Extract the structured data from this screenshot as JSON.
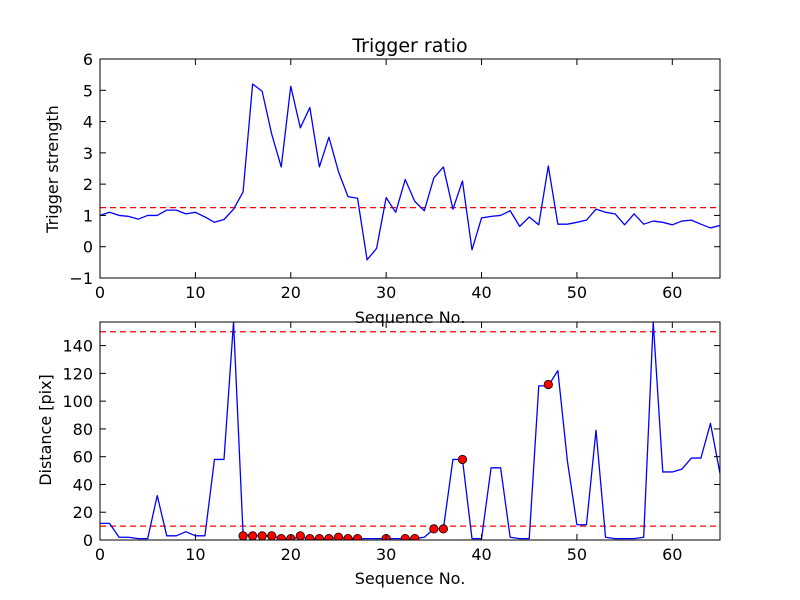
{
  "chart_data": [
    {
      "type": "line",
      "title": "Trigger ratio",
      "xlabel": "Sequence No.",
      "ylabel": "Trigger strength",
      "xlim": [
        0,
        65
      ],
      "ylim": [
        -1,
        6
      ],
      "xticks": [
        0,
        10,
        20,
        30,
        40,
        50,
        60
      ],
      "yticks": [
        -1,
        0,
        1,
        2,
        3,
        4,
        5,
        6
      ],
      "grid": false,
      "series": [
        {
          "color": "#0000ff",
          "x": [
            0,
            1,
            2,
            3,
            4,
            5,
            6,
            7,
            8,
            9,
            10,
            11,
            12,
            13,
            14,
            15,
            16,
            17,
            18,
            19,
            20,
            21,
            22,
            23,
            24,
            25,
            26,
            27,
            28,
            29,
            30,
            31,
            32,
            33,
            34,
            35,
            36,
            37,
            38,
            39,
            40,
            41,
            42,
            43,
            44,
            45,
            46,
            47,
            48,
            49,
            50,
            51,
            52,
            53,
            54,
            55,
            56,
            57,
            58,
            59,
            60,
            61,
            62,
            63,
            64,
            65
          ],
          "values": [
            1.0,
            1.1,
            1.0,
            0.97,
            0.88,
            1.0,
            1.0,
            1.17,
            1.17,
            1.05,
            1.1,
            0.95,
            0.78,
            0.87,
            1.2,
            1.75,
            5.2,
            4.97,
            3.6,
            2.55,
            5.13,
            3.8,
            4.45,
            2.55,
            3.5,
            2.4,
            1.6,
            1.55,
            -0.42,
            -0.05,
            1.57,
            1.1,
            2.15,
            1.45,
            1.15,
            2.2,
            2.55,
            1.2,
            2.1,
            -0.1,
            0.92,
            0.97,
            1.0,
            1.15,
            0.65,
            0.95,
            0.7,
            2.58,
            0.72,
            0.72,
            0.78,
            0.85,
            1.2,
            1.1,
            1.05,
            0.7,
            1.05,
            0.72,
            0.82,
            0.78,
            0.7,
            0.82,
            0.85,
            0.72,
            0.6,
            0.68
          ]
        }
      ],
      "thresholds": [
        {
          "y": 1.25,
          "color": "#ff0000",
          "style": "dashed"
        }
      ]
    },
    {
      "type": "line",
      "title": "",
      "xlabel": "Sequence No.",
      "ylabel": "Distance [pix]",
      "xlim": [
        0,
        65
      ],
      "ylim": [
        0,
        157
      ],
      "xticks": [
        0,
        10,
        20,
        30,
        40,
        50,
        60
      ],
      "yticks": [
        0,
        20,
        40,
        60,
        80,
        100,
        120,
        140
      ],
      "grid": false,
      "series": [
        {
          "color": "#0000ff",
          "x": [
            0,
            1,
            2,
            3,
            4,
            5,
            6,
            7,
            8,
            9,
            10,
            11,
            12,
            13,
            14,
            15,
            16,
            17,
            18,
            19,
            20,
            21,
            22,
            23,
            24,
            25,
            26,
            27,
            28,
            29,
            30,
            31,
            32,
            33,
            34,
            35,
            36,
            37,
            38,
            39,
            40,
            41,
            42,
            43,
            44,
            45,
            46,
            47,
            48,
            49,
            50,
            51,
            52,
            53,
            54,
            55,
            56,
            57,
            58,
            59,
            60,
            61,
            62,
            63,
            64,
            65
          ],
          "values": [
            12,
            12,
            2,
            2,
            1,
            1,
            32,
            3,
            3,
            6,
            3,
            3,
            58,
            58,
            157,
            4,
            3,
            3,
            3,
            1,
            1,
            2,
            1,
            1,
            1,
            2,
            1,
            1,
            1,
            1,
            1,
            1,
            1,
            1,
            2,
            8,
            8,
            58,
            58,
            1,
            1,
            52,
            52,
            2,
            1,
            1,
            111,
            111,
            122,
            57,
            11,
            11,
            79,
            2,
            1,
            1,
            1,
            2,
            157,
            49,
            49,
            51,
            59,
            59,
            84,
            48
          ]
        },
        {
          "color": "#ff0000",
          "style": "markers",
          "x": [
            15,
            16,
            17,
            18,
            19,
            20,
            21,
            22,
            23,
            24,
            25,
            26,
            27,
            30,
            32,
            33,
            35,
            36,
            38,
            47
          ],
          "values": [
            3,
            3,
            3,
            3,
            1,
            1,
            3,
            1,
            1,
            1,
            2,
            1,
            1,
            1,
            1,
            1,
            8,
            8,
            58,
            112
          ]
        }
      ],
      "thresholds": [
        {
          "y": 150,
          "color": "#ff0000",
          "style": "dashed"
        },
        {
          "y": 10,
          "color": "#ff0000",
          "style": "dashed"
        }
      ]
    }
  ]
}
